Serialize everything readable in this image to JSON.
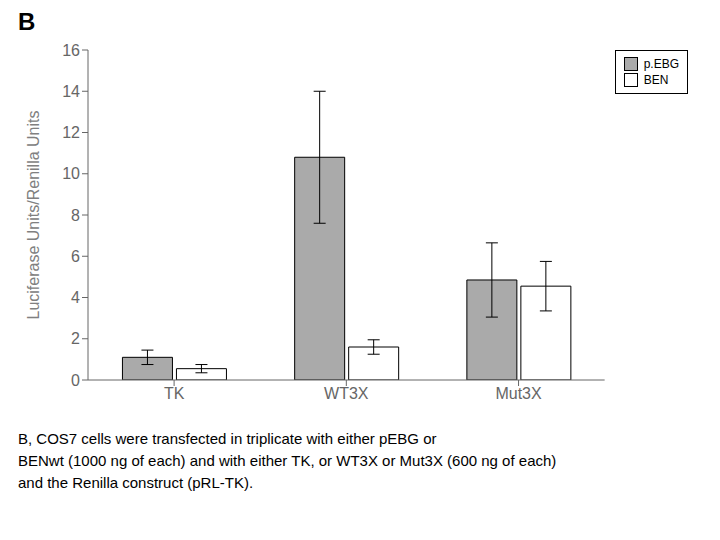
{
  "chart_data": {
    "type": "bar",
    "title": "B",
    "categories": [
      "TK",
      "WT3X",
      "Mut3X"
    ],
    "series": [
      {
        "name": "p.EBG",
        "color": "#aaaaaa",
        "values": [
          1.1,
          10.8,
          4.85
        ],
        "errors": [
          0.35,
          3.2,
          1.8
        ]
      },
      {
        "name": "BEN",
        "color": "#ffffff",
        "values": [
          0.55,
          1.6,
          4.55
        ],
        "errors": [
          0.2,
          0.35,
          1.2
        ]
      }
    ],
    "ylabel": "Luciferase Units/Renilla Units",
    "ylim": [
      0,
      16
    ],
    "yticks": [
      0,
      2,
      4,
      6,
      8,
      10,
      12,
      14,
      16
    ],
    "grid": false,
    "legend": "upper right",
    "annotations": [
      "B, COS7 cells were transfected in triplicate with either pEBG or",
      "BENwt (1000 ng of each) and with either TK, or WT3X or Mut3X (600 ng of each)",
      "and the Renilla construct (pRL-TK)."
    ]
  }
}
